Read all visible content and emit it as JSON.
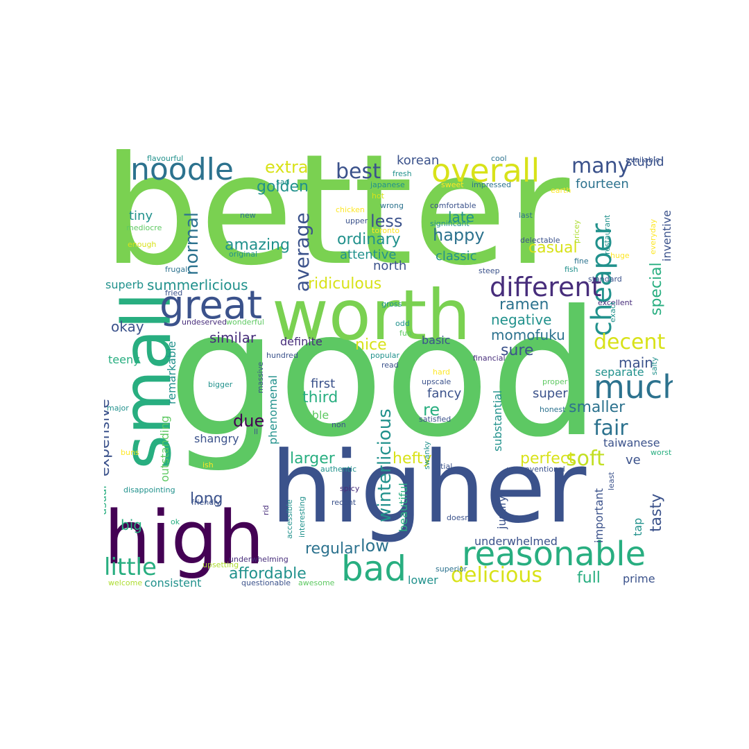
{
  "palette": {
    "v1": "#440154",
    "v2": "#472d7b",
    "v3": "#3b528b",
    "v4": "#2c728e",
    "v5": "#21918c",
    "v6": "#28ae80",
    "v7": "#5ec962",
    "v8": "#addc30",
    "v9": "#fde725",
    "g1": "#7ad151",
    "g2": "#5dc863",
    "g3": "#35b779",
    "y1": "#d8e219",
    "y2": "#c2df23"
  },
  "words": [
    {
      "text": "better",
      "c": "g1"
    },
    {
      "text": "good",
      "c": "g2"
    },
    {
      "text": "higher",
      "c": "v3"
    },
    {
      "text": "worth",
      "c": "g1"
    },
    {
      "text": "high",
      "c": "v1"
    },
    {
      "text": "small",
      "c": "v6"
    },
    {
      "text": "reasonable",
      "c": "v6"
    },
    {
      "text": "great",
      "c": "v3"
    },
    {
      "text": "noodle",
      "c": "v4"
    },
    {
      "text": "overall",
      "c": "y1"
    },
    {
      "text": "much",
      "c": "v4"
    },
    {
      "text": "bad",
      "c": "v6"
    },
    {
      "text": "cheaper",
      "c": "v5"
    },
    {
      "text": "different",
      "c": "v2"
    },
    {
      "text": "little",
      "c": "v6"
    },
    {
      "text": "delicious",
      "c": "y1"
    },
    {
      "text": "decent",
      "c": "y1"
    },
    {
      "text": "soft",
      "c": "y2"
    },
    {
      "text": "fair",
      "c": "v4"
    },
    {
      "text": "many",
      "c": "v3"
    },
    {
      "text": "best",
      "c": "v3"
    },
    {
      "text": "normal",
      "c": "v4"
    },
    {
      "text": "average",
      "c": "v3"
    },
    {
      "text": "winterlicious",
      "c": "v5"
    },
    {
      "text": "affordable",
      "c": "v5"
    },
    {
      "text": "extra",
      "c": "y1"
    },
    {
      "text": "golden",
      "c": "v5"
    },
    {
      "text": "less",
      "c": "v3"
    },
    {
      "text": "amazing",
      "c": "v5"
    },
    {
      "text": "ordinary",
      "c": "v5"
    },
    {
      "text": "happy",
      "c": "v4"
    },
    {
      "text": "casual",
      "c": "y1"
    },
    {
      "text": "ridiculous",
      "c": "y1"
    },
    {
      "text": "summerlicious",
      "c": "v5"
    },
    {
      "text": "ramen",
      "c": "v4"
    },
    {
      "text": "negative",
      "c": "v5"
    },
    {
      "text": "momofuku",
      "c": "v4"
    },
    {
      "text": "okay",
      "c": "v3"
    },
    {
      "text": "expensive",
      "c": "v3"
    },
    {
      "text": "similar",
      "c": "v2"
    },
    {
      "text": "nice",
      "c": "y1"
    },
    {
      "text": "sure",
      "c": "v3"
    },
    {
      "text": "third",
      "c": "v6"
    },
    {
      "text": "re",
      "c": "v6"
    },
    {
      "text": "due",
      "c": "v1"
    },
    {
      "text": "larger",
      "c": "v6"
    },
    {
      "text": "hefty",
      "c": "y1"
    },
    {
      "text": "perfect",
      "c": "y1"
    },
    {
      "text": "regular",
      "c": "v4"
    },
    {
      "text": "long",
      "c": "v3"
    },
    {
      "text": "low",
      "c": "v4"
    },
    {
      "text": "big",
      "c": "v6"
    },
    {
      "text": "tasty",
      "c": "v3"
    },
    {
      "text": "smaller",
      "c": "v4"
    },
    {
      "text": "full",
      "c": "v6"
    },
    {
      "text": "special",
      "c": "v6"
    },
    {
      "text": "main",
      "c": "v3"
    },
    {
      "text": "korean",
      "c": "v3"
    },
    {
      "text": "stupid",
      "c": "v3"
    },
    {
      "text": "fourteen",
      "c": "v4"
    },
    {
      "text": "tiny",
      "c": "v5"
    },
    {
      "text": "attentive",
      "c": "v5"
    },
    {
      "text": "north",
      "c": "v3"
    },
    {
      "text": "classic",
      "c": "v5"
    },
    {
      "text": "late",
      "c": "v5"
    },
    {
      "text": "superb",
      "c": "v5"
    },
    {
      "text": "definite",
      "c": "v2"
    },
    {
      "text": "basic",
      "c": "v3"
    },
    {
      "text": "teeny",
      "c": "v6"
    },
    {
      "text": "first",
      "c": "v3"
    },
    {
      "text": "fancy",
      "c": "v3"
    },
    {
      "text": "able",
      "c": "v7"
    },
    {
      "text": "super",
      "c": "v3"
    },
    {
      "text": "separate",
      "c": "v5"
    },
    {
      "text": "taiwanese",
      "c": "v3"
    },
    {
      "text": "shangry",
      "c": "v3"
    },
    {
      "text": "ve",
      "c": "v3"
    },
    {
      "text": "underwhelmed",
      "c": "v3"
    },
    {
      "text": "consistent",
      "c": "v5"
    },
    {
      "text": "lower",
      "c": "v5"
    },
    {
      "text": "prime",
      "c": "v3"
    },
    {
      "text": "remarkable",
      "c": "v5"
    },
    {
      "text": "outstanding",
      "c": "v7"
    },
    {
      "text": "phenomenal",
      "c": "v5"
    },
    {
      "text": "substantial",
      "c": "v5"
    },
    {
      "text": "beautiful",
      "c": "v6"
    },
    {
      "text": "justify",
      "c": "v3"
    },
    {
      "text": "important",
      "c": "v3"
    },
    {
      "text": "usual",
      "c": "v6"
    },
    {
      "text": "inventive",
      "c": "v3"
    },
    {
      "text": "tap",
      "c": "v5"
    },
    {
      "text": "flavourful",
      "c": "v5"
    },
    {
      "text": "cool",
      "c": "v4"
    },
    {
      "text": "available",
      "c": "v3"
    },
    {
      "text": "fresh",
      "c": "v5"
    },
    {
      "text": "sad",
      "c": "v5"
    },
    {
      "text": "japanese",
      "c": "v5"
    },
    {
      "text": "sweet",
      "c": "v9"
    },
    {
      "text": "impressed",
      "c": "v4"
    },
    {
      "text": "earth",
      "c": "v9"
    },
    {
      "text": "hot",
      "c": "y1"
    },
    {
      "text": "wrong",
      "c": "v4"
    },
    {
      "text": "new",
      "c": "v4"
    },
    {
      "text": "chicken",
      "c": "v9"
    },
    {
      "text": "comfortable",
      "c": "v3"
    },
    {
      "text": "last",
      "c": "v4"
    },
    {
      "text": "entire",
      "c": "v8"
    },
    {
      "text": "mediocre",
      "c": "v7"
    },
    {
      "text": "upper",
      "c": "v3"
    },
    {
      "text": "toronto",
      "c": "v9"
    },
    {
      "text": "significant",
      "c": "v5"
    },
    {
      "text": "pricey",
      "c": "v8"
    },
    {
      "text": "everyday",
      "c": "v9"
    },
    {
      "text": "enough",
      "c": "y1"
    },
    {
      "text": "delectable",
      "c": "v3"
    },
    {
      "text": "restaurant",
      "c": "v5"
    },
    {
      "text": "original",
      "c": "v5"
    },
    {
      "text": "frugal",
      "c": "v4"
    },
    {
      "text": "fine",
      "c": "v4"
    },
    {
      "text": "huge",
      "c": "v9"
    },
    {
      "text": "steep",
      "c": "v3"
    },
    {
      "text": "fish",
      "c": "v5"
    },
    {
      "text": "standard",
      "c": "v3"
    },
    {
      "text": "fried",
      "c": "v3"
    },
    {
      "text": "gross",
      "c": "v5"
    },
    {
      "text": "excellent",
      "c": "v2"
    },
    {
      "text": "exact",
      "c": "v5"
    },
    {
      "text": "undeserved",
      "c": "v2"
    },
    {
      "text": "wonderful",
      "c": "v7"
    },
    {
      "text": "odd",
      "c": "v5"
    },
    {
      "text": "fun",
      "c": "v7"
    },
    {
      "text": "popular",
      "c": "v5"
    },
    {
      "text": "hundred",
      "c": "v3"
    },
    {
      "text": "read",
      "c": "v3"
    },
    {
      "text": "financial",
      "c": "v2"
    },
    {
      "text": "massive",
      "c": "v3"
    },
    {
      "text": "hard",
      "c": "v9"
    },
    {
      "text": "salty",
      "c": "v5"
    },
    {
      "text": "bigger",
      "c": "v5"
    },
    {
      "text": "upscale",
      "c": "v3"
    },
    {
      "text": "proper",
      "c": "v7"
    },
    {
      "text": "major",
      "c": "v5"
    },
    {
      "text": "satisfied",
      "c": "v3"
    },
    {
      "text": "honest",
      "c": "v4"
    },
    {
      "text": "ll",
      "c": "v3"
    },
    {
      "text": "non",
      "c": "v3"
    },
    {
      "text": "buns",
      "c": "v9"
    },
    {
      "text": "swanky",
      "c": "v5"
    },
    {
      "text": "worst",
      "c": "v6"
    },
    {
      "text": "ish",
      "c": "v9"
    },
    {
      "text": "authentic",
      "c": "v5"
    },
    {
      "text": "initial",
      "c": "v3"
    },
    {
      "text": "unconventional",
      "c": "v3"
    },
    {
      "text": "disappointing",
      "c": "v5"
    },
    {
      "text": "spicy",
      "c": "v2"
    },
    {
      "text": "least",
      "c": "v3"
    },
    {
      "text": "friendly",
      "c": "v3"
    },
    {
      "text": "rid",
      "c": "v2"
    },
    {
      "text": "recent",
      "c": "v3"
    },
    {
      "text": "accessible",
      "c": "v5"
    },
    {
      "text": "interesting",
      "c": "v5"
    },
    {
      "text": "doesn",
      "c": "v3"
    },
    {
      "text": "ok",
      "c": "v6"
    },
    {
      "text": "underwhelming",
      "c": "v2"
    },
    {
      "text": "superior",
      "c": "v4"
    },
    {
      "text": "welcome",
      "c": "v8"
    },
    {
      "text": "questionable",
      "c": "v3"
    },
    {
      "text": "awesome",
      "c": "v7"
    },
    {
      "text": "upsetting",
      "c": "v8"
    }
  ]
}
